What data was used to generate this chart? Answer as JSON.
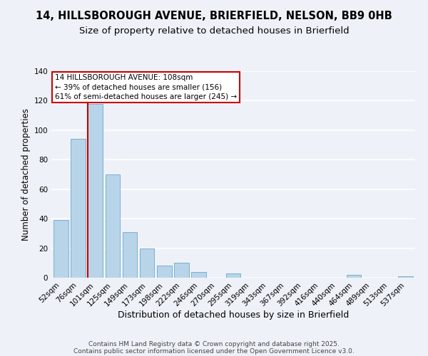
{
  "title": "14, HILLSBOROUGH AVENUE, BRIERFIELD, NELSON, BB9 0HB",
  "subtitle": "Size of property relative to detached houses in Brierfield",
  "xlabel": "Distribution of detached houses by size in Brierfield",
  "ylabel": "Number of detached properties",
  "categories": [
    "52sqm",
    "76sqm",
    "101sqm",
    "125sqm",
    "149sqm",
    "173sqm",
    "198sqm",
    "222sqm",
    "246sqm",
    "270sqm",
    "295sqm",
    "319sqm",
    "343sqm",
    "367sqm",
    "392sqm",
    "416sqm",
    "440sqm",
    "464sqm",
    "489sqm",
    "513sqm",
    "537sqm"
  ],
  "values": [
    39,
    94,
    118,
    70,
    31,
    20,
    8,
    10,
    4,
    0,
    3,
    0,
    0,
    0,
    0,
    0,
    0,
    2,
    0,
    0,
    1
  ],
  "bar_color": "#b8d4e8",
  "bar_edge_color": "#7aafd4",
  "property_line_color": "#cc0000",
  "property_line_index": 2,
  "ylim": [
    0,
    140
  ],
  "yticks": [
    0,
    20,
    40,
    60,
    80,
    100,
    120,
    140
  ],
  "annotation_title": "14 HILLSBOROUGH AVENUE: 108sqm",
  "annotation_line1": "← 39% of detached houses are smaller (156)",
  "annotation_line2": "61% of semi-detached houses are larger (245) →",
  "annotation_box_color": "#ffffff",
  "annotation_box_edge": "#cc0000",
  "footer1": "Contains HM Land Registry data © Crown copyright and database right 2025.",
  "footer2": "Contains public sector information licensed under the Open Government Licence v3.0.",
  "background_color": "#eef2f8",
  "grid_color": "#ffffff",
  "title_fontsize": 10.5,
  "subtitle_fontsize": 9.5,
  "xlabel_fontsize": 9,
  "ylabel_fontsize": 8.5,
  "tick_fontsize": 7.5,
  "annotation_fontsize": 7.5,
  "footer_fontsize": 6.5
}
